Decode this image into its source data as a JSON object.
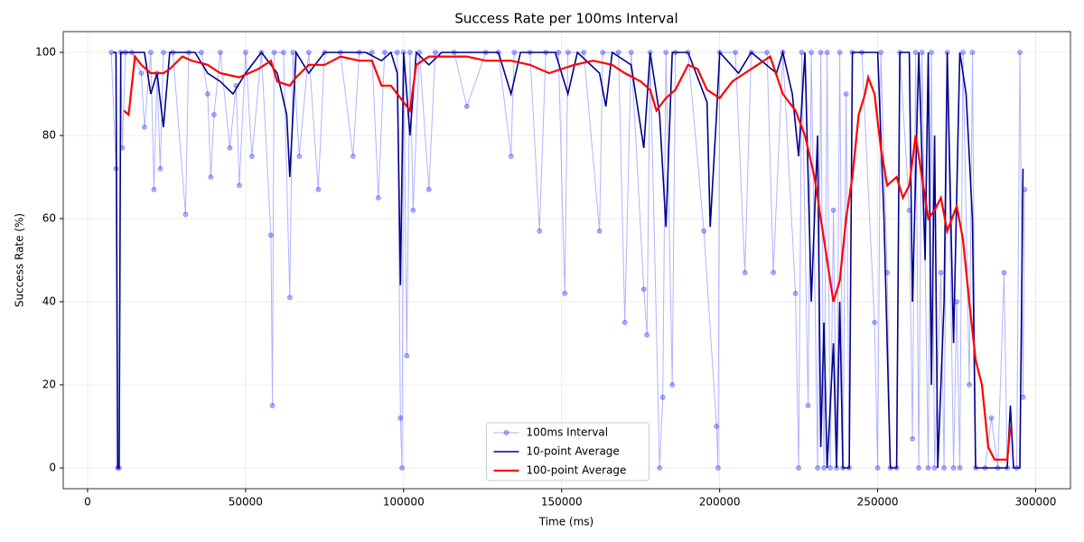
{
  "chart_data": {
    "type": "line",
    "title": "Success Rate per 100ms Interval",
    "xlabel": "Time (ms)",
    "ylabel": "Success Rate (%)",
    "xlim": [
      -7700,
      311000
    ],
    "ylim": [
      -5,
      105
    ],
    "xticks": [
      0,
      50000,
      100000,
      150000,
      200000,
      250000,
      300000
    ],
    "yticks": [
      0,
      20,
      40,
      60,
      80,
      100
    ],
    "grid": true,
    "legend": "lower center",
    "series": [
      {
        "name": "100ms Interval",
        "color": "#0000ff",
        "markers": true,
        "x": [
          7500,
          9000,
          9500,
          10000,
          10500,
          11000,
          12000,
          14000,
          17000,
          18000,
          20000,
          21000,
          22000,
          23000,
          24000,
          27000,
          31000,
          32000,
          36000,
          38000,
          39000,
          40000,
          42000,
          45000,
          47000,
          48000,
          50000,
          52000,
          55000,
          58000,
          58500,
          59000,
          62000,
          64000,
          65000,
          67000,
          70000,
          73000,
          75000,
          80000,
          84000,
          86000,
          90000,
          92000,
          94000,
          98000,
          99000,
          99500,
          100000,
          101000,
          102000,
          103000,
          105000,
          108000,
          110000,
          116000,
          120000,
          126000,
          130000,
          134000,
          135000,
          140000,
          143000,
          145000,
          149000,
          151000,
          152000,
          157000,
          162000,
          163000,
          168000,
          170000,
          172000,
          176000,
          177000,
          178000,
          181000,
          182000,
          183000,
          185000,
          186000,
          190000,
          195000,
          199000,
          199500,
          200000,
          205000,
          208000,
          210000,
          215000,
          217000,
          220000,
          224000,
          225000,
          226000,
          228000,
          229000,
          231000,
          232000,
          233000,
          234000,
          235000,
          236000,
          237000,
          238000,
          239000,
          240000,
          241000,
          242000,
          245000,
          249000,
          250000,
          251000,
          253000,
          254000,
          256000,
          257000,
          260000,
          261000,
          262000,
          263000,
          264000,
          266000,
          267000,
          268000,
          270000,
          271000,
          272000,
          274000,
          275000,
          276000,
          277000,
          279000,
          280000,
          281000,
          284000,
          286000,
          288000,
          290000,
          291000,
          294000,
          295000,
          296000,
          296500
        ],
        "values": [
          100,
          72,
          0,
          0,
          100,
          77,
          100,
          100,
          95,
          82,
          100,
          67,
          95,
          72,
          100,
          100,
          61,
          100,
          100,
          90,
          70,
          85,
          100,
          77,
          92,
          68,
          100,
          75,
          100,
          56,
          15,
          100,
          100,
          41,
          100,
          75,
          100,
          67,
          100,
          100,
          75,
          100,
          100,
          65,
          100,
          100,
          12,
          0,
          100,
          27,
          100,
          62,
          100,
          67,
          100,
          100,
          87,
          100,
          100,
          75,
          100,
          100,
          57,
          100,
          100,
          42,
          100,
          100,
          57,
          100,
          100,
          35,
          100,
          43,
          32,
          100,
          0,
          17,
          100,
          20,
          100,
          100,
          57,
          10,
          0,
          100,
          100,
          47,
          100,
          100,
          47,
          100,
          42,
          0,
          100,
          15,
          100,
          0,
          100,
          0,
          100,
          0,
          62,
          0,
          100,
          0,
          90,
          0,
          100,
          100,
          35,
          0,
          100,
          47,
          0,
          0,
          100,
          62,
          7,
          100,
          0,
          100,
          0,
          100,
          0,
          47,
          0,
          100,
          0,
          40,
          0,
          100,
          20,
          100,
          0,
          0,
          12,
          0,
          47,
          0,
          0,
          100,
          17,
          67
        ]
      },
      {
        "name": "10-point Average",
        "color": "#00008b",
        "markers": false,
        "x": [
          8000,
          9000,
          9500,
          10000,
          10500,
          12000,
          18000,
          20000,
          22000,
          24000,
          26000,
          34000,
          38000,
          42000,
          46000,
          50000,
          55000,
          60000,
          63000,
          64000,
          66000,
          70000,
          75000,
          88000,
          93000,
          96000,
          98000,
          99000,
          100000,
          102000,
          104000,
          108000,
          112000,
          130000,
          134000,
          137000,
          148000,
          152000,
          155000,
          162000,
          164000,
          166000,
          172000,
          176000,
          178000,
          181000,
          183000,
          185000,
          190000,
          196000,
          197000,
          199000,
          200000,
          206000,
          210000,
          218000,
          220000,
          223000,
          225000,
          227000,
          229000,
          231000,
          232000,
          233000,
          234000,
          236000,
          237000,
          238000,
          239000,
          241000,
          242000,
          250000,
          252000,
          254000,
          256000,
          257000,
          260000,
          261000,
          263000,
          265000,
          266000,
          267000,
          268000,
          269000,
          271000,
          272000,
          274000,
          276000,
          278000,
          280000,
          281000,
          291000,
          292000,
          293000,
          295000,
          296000
        ],
        "values": [
          100,
          100,
          0,
          0,
          100,
          100,
          100,
          90,
          95,
          82,
          100,
          100,
          95,
          93,
          90,
          95,
          100,
          95,
          85,
          70,
          100,
          95,
          100,
          100,
          98,
          100,
          95,
          44,
          100,
          80,
          100,
          97,
          100,
          100,
          90,
          100,
          100,
          90,
          100,
          95,
          87,
          100,
          97,
          77,
          100,
          85,
          58,
          100,
          100,
          88,
          58,
          85,
          100,
          95,
          100,
          95,
          100,
          90,
          75,
          100,
          40,
          80,
          5,
          35,
          0,
          30,
          0,
          40,
          0,
          0,
          100,
          100,
          60,
          0,
          0,
          100,
          100,
          40,
          100,
          50,
          100,
          20,
          80,
          0,
          40,
          100,
          30,
          100,
          90,
          60,
          0,
          0,
          15,
          0,
          0,
          72
        ]
      },
      {
        "name": "100-point Average",
        "color": "#ff0000",
        "markers": false,
        "x": [
          11500,
          13000,
          15000,
          17000,
          20000,
          24000,
          26000,
          30000,
          33000,
          38000,
          42000,
          48000,
          54000,
          58000,
          60000,
          64000,
          66000,
          70000,
          75000,
          80000,
          86000,
          90000,
          93000,
          96000,
          99000,
          102000,
          104000,
          108000,
          114000,
          120000,
          126000,
          134000,
          140000,
          146000,
          154000,
          160000,
          166000,
          170000,
          175000,
          178000,
          180000,
          183000,
          186000,
          190000,
          193000,
          196000,
          200000,
          204000,
          208000,
          212000,
          216000,
          220000,
          224000,
          227000,
          230000,
          232000,
          234000,
          236000,
          238000,
          240000,
          242000,
          244000,
          246000,
          247000,
          249000,
          251000,
          253000,
          256000,
          258000,
          260000,
          262000,
          264000,
          266000,
          268000,
          270000,
          272000,
          275000,
          277000,
          279000,
          281000,
          283000,
          285000,
          287000,
          289000,
          291000,
          292000
        ],
        "values": [
          86,
          85,
          99,
          97,
          95,
          95,
          96,
          99,
          98,
          97,
          95,
          94,
          96,
          98,
          93,
          92,
          94,
          97,
          97,
          99,
          98,
          98,
          92,
          92,
          89,
          86,
          97,
          99,
          99,
          99,
          98,
          98,
          97,
          95,
          97,
          98,
          97,
          95,
          93,
          91,
          86,
          89,
          91,
          97,
          96,
          91,
          89,
          93,
          95,
          97,
          99,
          90,
          86,
          80,
          70,
          60,
          50,
          40,
          45,
          60,
          70,
          85,
          90,
          94,
          90,
          77,
          68,
          70,
          65,
          68,
          80,
          70,
          60,
          62,
          65,
          57,
          63,
          55,
          40,
          26,
          20,
          5,
          2,
          2,
          2,
          10
        ]
      }
    ]
  }
}
